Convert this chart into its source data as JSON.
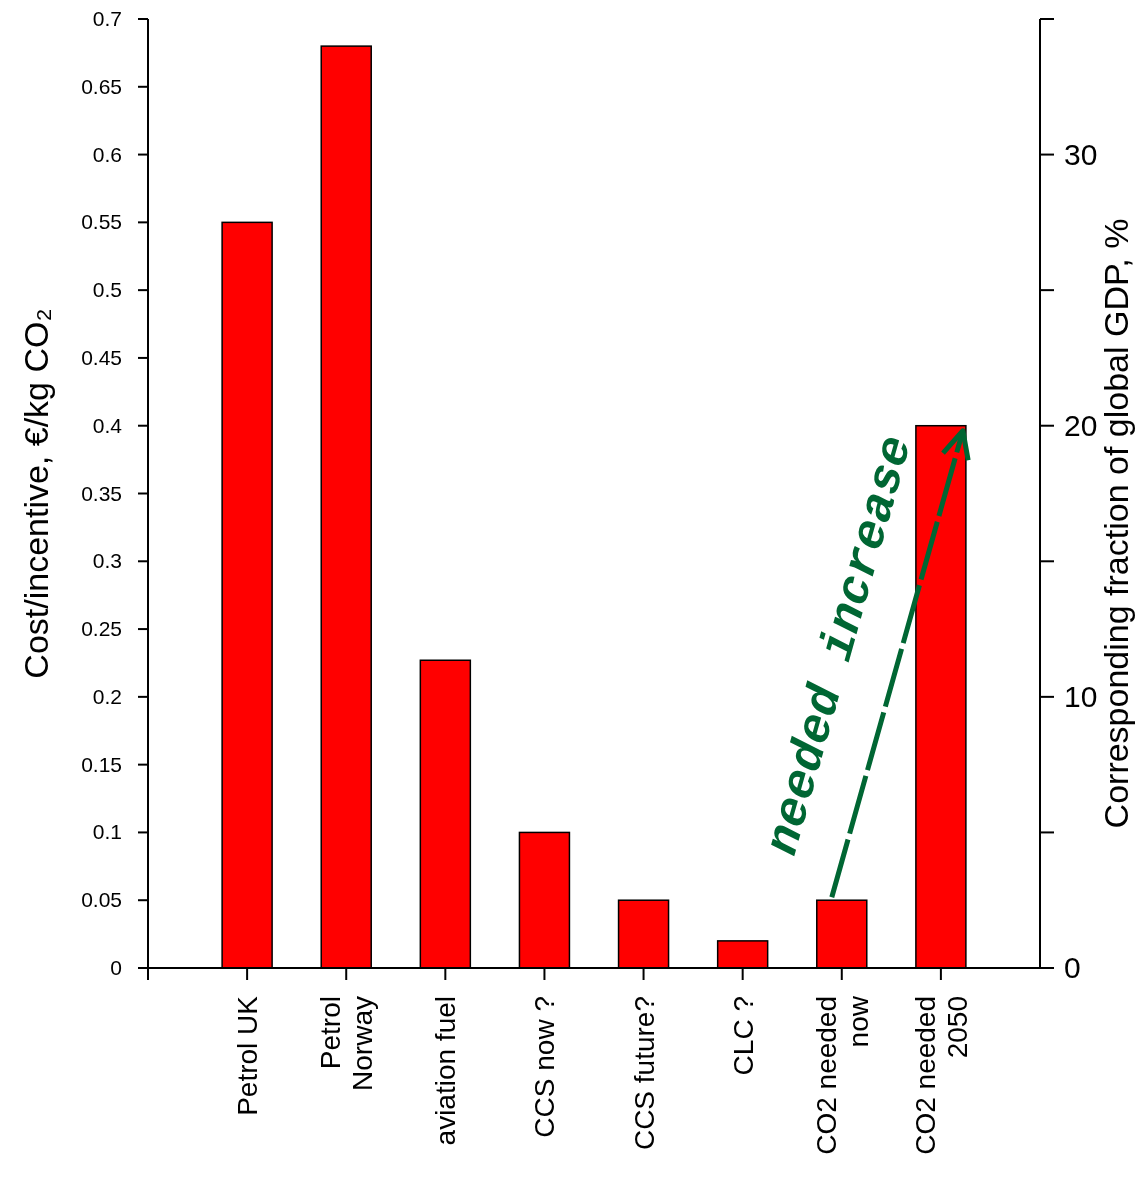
{
  "chart_data": {
    "type": "bar",
    "ylabel": "Cost/incentive, €/kg CO₂",
    "y2label": "Corresponding fraction of global GDP, %",
    "categories": [
      "Petrol UK",
      "Petrol\nNorway",
      "aviation fuel",
      "CCS now ?",
      "CCS future?",
      "CLC ?",
      "CO2 needed\nnow",
      "CO2 needed\n2050"
    ],
    "values": [
      0.55,
      0.68,
      0.227,
      0.1,
      0.05,
      0.02,
      0.05,
      0.4
    ],
    "color": "#ff0000",
    "ylim": [
      0,
      0.7
    ],
    "yticks": [
      0,
      0.05,
      0.1,
      0.15,
      0.2,
      0.25,
      0.3,
      0.35,
      0.4,
      0.45,
      0.5,
      0.55,
      0.6,
      0.65,
      0.7
    ],
    "y2lim": [
      0,
      35
    ],
    "y2ticks": [
      0,
      {
        "value": 5,
        "label": null
      },
      10,
      {
        "value": 15,
        "label": null
      },
      20,
      {
        "value": 25,
        "label": null
      },
      30,
      {
        "value": 35,
        "label": null
      }
    ],
    "annotations": [
      "needed increase"
    ]
  }
}
